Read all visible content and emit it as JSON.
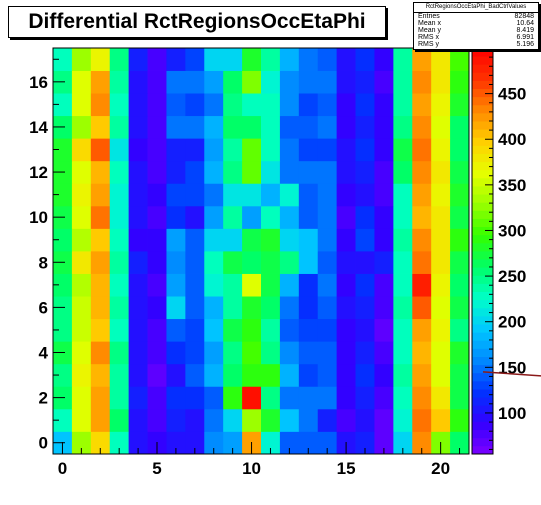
{
  "chart_data": {
    "type": "heatmap",
    "title": "Differential RctRegionsOccEtaPhi",
    "stats": {
      "name": "RctRegionsOccEtaPhi_BadCtrlValues",
      "rows": [
        {
          "label": "Entries",
          "value": "82848"
        },
        {
          "label": "Mean x",
          "value": "10.64"
        },
        {
          "label": "Mean y",
          "value": "8.419"
        },
        {
          "label": "RMS x",
          "value": "6.991"
        },
        {
          "label": "RMS y",
          "value": "5.196"
        }
      ]
    },
    "xlim": [
      -0.5,
      21.5
    ],
    "ylim": [
      -0.5,
      17.5
    ],
    "x_ticks": [
      "0",
      "5",
      "10",
      "15",
      "20"
    ],
    "y_ticks": [
      "0",
      "2",
      "4",
      "6",
      "8",
      "10",
      "12",
      "14",
      "16"
    ],
    "color_scale": {
      "min": 55,
      "max": 500,
      "ticks": [
        "100",
        "150",
        "200",
        "250",
        "300",
        "350",
        "400",
        "450"
      ]
    },
    "values": [
      [
        190,
        330,
        390,
        230,
        100,
        90,
        100,
        100,
        160,
        170,
        420,
        220,
        140,
        140,
        140,
        100,
        110,
        70,
        200,
        430,
        320,
        260
      ],
      [
        230,
        360,
        420,
        260,
        100,
        80,
        110,
        100,
        150,
        200,
        330,
        280,
        190,
        150,
        110,
        80,
        100,
        70,
        220,
        440,
        400,
        290
      ],
      [
        260,
        360,
        420,
        240,
        110,
        80,
        120,
        120,
        140,
        290,
        490,
        250,
        150,
        150,
        150,
        90,
        110,
        80,
        230,
        430,
        380,
        270
      ],
      [
        250,
        370,
        410,
        240,
        100,
        70,
        100,
        140,
        180,
        260,
        290,
        290,
        180,
        130,
        140,
        90,
        120,
        90,
        240,
        420,
        360,
        270
      ],
      [
        270,
        360,
        430,
        250,
        100,
        80,
        120,
        130,
        170,
        250,
        300,
        250,
        160,
        140,
        140,
        90,
        110,
        80,
        230,
        410,
        360,
        280
      ],
      [
        250,
        350,
        400,
        230,
        100,
        80,
        140,
        130,
        190,
        270,
        290,
        240,
        140,
        130,
        130,
        90,
        100,
        70,
        230,
        420,
        370,
        250
      ],
      [
        250,
        350,
        410,
        240,
        100,
        90,
        200,
        140,
        180,
        240,
        280,
        260,
        150,
        120,
        140,
        100,
        110,
        80,
        240,
        450,
        360,
        270
      ],
      [
        260,
        340,
        410,
        230,
        100,
        80,
        170,
        140,
        220,
        240,
        360,
        270,
        180,
        120,
        150,
        90,
        120,
        80,
        230,
        480,
        370,
        260
      ],
      [
        270,
        380,
        420,
        240,
        110,
        90,
        160,
        140,
        230,
        270,
        260,
        270,
        250,
        190,
        140,
        100,
        100,
        110,
        230,
        440,
        380,
        270
      ],
      [
        260,
        340,
        400,
        230,
        90,
        90,
        170,
        140,
        200,
        200,
        270,
        280,
        200,
        190,
        150,
        90,
        130,
        90,
        240,
        430,
        380,
        290
      ],
      [
        270,
        360,
        440,
        220,
        100,
        80,
        120,
        100,
        170,
        240,
        170,
        230,
        180,
        140,
        150,
        80,
        120,
        90,
        230,
        410,
        380,
        270
      ],
      [
        280,
        370,
        420,
        220,
        100,
        90,
        130,
        130,
        150,
        210,
        210,
        180,
        220,
        140,
        150,
        90,
        100,
        80,
        230,
        420,
        370,
        280
      ],
      [
        280,
        360,
        410,
        230,
        100,
        80,
        110,
        130,
        180,
        250,
        310,
        210,
        150,
        150,
        150,
        100,
        110,
        80,
        260,
        430,
        380,
        270
      ],
      [
        280,
        390,
        450,
        210,
        90,
        80,
        110,
        110,
        170,
        240,
        310,
        230,
        150,
        130,
        130,
        100,
        120,
        90,
        270,
        440,
        370,
        260
      ],
      [
        260,
        330,
        400,
        240,
        100,
        80,
        150,
        150,
        180,
        260,
        260,
        230,
        140,
        140,
        150,
        90,
        110,
        90,
        250,
        430,
        360,
        260
      ],
      [
        230,
        360,
        430,
        230,
        100,
        80,
        140,
        130,
        150,
        250,
        230,
        230,
        160,
        130,
        140,
        90,
        120,
        90,
        240,
        420,
        370,
        280
      ],
      [
        250,
        360,
        420,
        240,
        100,
        80,
        150,
        150,
        170,
        260,
        320,
        220,
        160,
        150,
        150,
        100,
        110,
        80,
        240,
        430,
        380,
        290
      ],
      [
        230,
        330,
        370,
        250,
        110,
        80,
        110,
        130,
        200,
        200,
        280,
        240,
        180,
        150,
        140,
        100,
        120,
        90,
        240,
        420,
        380,
        300
      ]
    ]
  }
}
